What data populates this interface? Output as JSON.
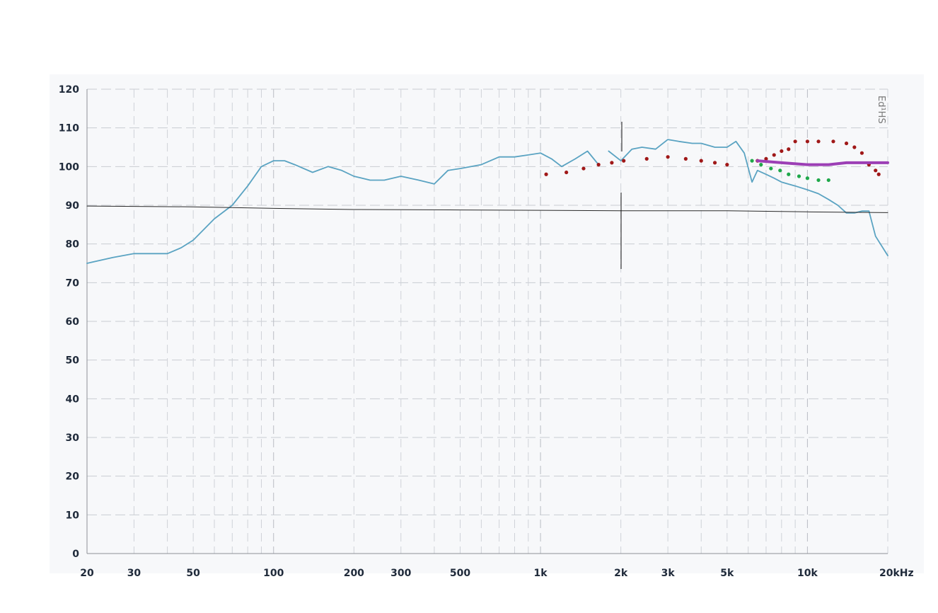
{
  "chart_data": {
    "type": "line",
    "xscale": "log",
    "xlim": [
      20,
      20000
    ],
    "ylim": [
      0,
      120
    ],
    "grid": true,
    "y_ticks": [
      "0",
      "10",
      "20",
      "30",
      "40",
      "50",
      "60",
      "70",
      "80",
      "90",
      "100",
      "110",
      "120"
    ],
    "x_ticks": [
      {
        "value": 20,
        "label": "20"
      },
      {
        "value": 30,
        "label": "30"
      },
      {
        "value": 50,
        "label": "50"
      },
      {
        "value": 100,
        "label": "100"
      },
      {
        "value": 200,
        "label": "200"
      },
      {
        "value": 300,
        "label": "300"
      },
      {
        "value": 500,
        "label": "500"
      },
      {
        "value": 1000,
        "label": "1k"
      },
      {
        "value": 2000,
        "label": "2k"
      },
      {
        "value": 3000,
        "label": "3k"
      },
      {
        "value": 5000,
        "label": "5k"
      },
      {
        "value": 10000,
        "label": "10k"
      },
      {
        "value": 20000,
        "label": "20kHz"
      }
    ],
    "side_label": "Ed¹HS",
    "series": [
      {
        "style": "line",
        "color": "#5aa3c2",
        "x": [
          20,
          25,
          30,
          35,
          40,
          45,
          50,
          60,
          70,
          80,
          90,
          100,
          110,
          120,
          140,
          160,
          180,
          200,
          230,
          260,
          300,
          350,
          400,
          450,
          500,
          600,
          700,
          800,
          900,
          1000,
          1100,
          1200,
          1350,
          1500,
          1650
        ],
        "y": [
          75,
          76.5,
          77.5,
          77.5,
          77.5,
          79,
          81,
          86.5,
          90,
          95,
          100,
          101.5,
          101.5,
          100.5,
          98.5,
          100,
          99,
          97.5,
          96.5,
          96.5,
          97.5,
          96.5,
          95.5,
          99,
          99.5,
          100.5,
          102.5,
          102.5,
          103,
          103.5,
          102,
          100,
          102,
          104,
          100.5
        ]
      },
      {
        "style": "line",
        "color": "#5aa3c2",
        "x": [
          1800,
          2000,
          2200,
          2400,
          2700,
          3000,
          3300,
          3700,
          4000,
          4500,
          5000,
          5400,
          5800,
          6200,
          6500,
          7000,
          7500,
          8000,
          9000,
          10000,
          11000,
          12000,
          13000,
          14000,
          15000,
          16000,
          17000,
          18000,
          20000
        ],
        "y": [
          104,
          101.5,
          104.5,
          105,
          104.5,
          107,
          106.5,
          106,
          106,
          105,
          105,
          106.5,
          103.5,
          96,
          99,
          98,
          97,
          96,
          95,
          94,
          93,
          91.5,
          90,
          88,
          88,
          88.5,
          88.5,
          82,
          77
        ]
      },
      {
        "style": "line",
        "color": "#2a2a2a",
        "x": [
          20,
          50,
          100,
          200,
          500,
          1000,
          2000,
          5000,
          10000,
          20000
        ],
        "y": [
          89.8,
          89.6,
          89.2,
          88.9,
          88.8,
          88.7,
          88.6,
          88.6,
          88.3,
          88.1
        ]
      },
      {
        "style": "dots",
        "color": "#a01818",
        "x": [
          1050,
          1250,
          1450,
          1650,
          1850,
          2050,
          2500,
          3000,
          3500,
          4000,
          4500,
          5000,
          6500,
          7000,
          7500,
          8000,
          8500,
          9000,
          10000,
          11000,
          12500,
          14000,
          15000,
          16000,
          17000,
          18000,
          18500
        ],
        "y": [
          98,
          98.5,
          99.5,
          100.5,
          101,
          101.5,
          102,
          102.5,
          102,
          101.5,
          101,
          100.5,
          101.5,
          102,
          103,
          104,
          104.5,
          106.5,
          106.5,
          106.5,
          106.5,
          106,
          105,
          103.5,
          100.5,
          99,
          98
        ]
      },
      {
        "style": "dots",
        "color": "#1fa84a",
        "x": [
          6200,
          6700,
          7300,
          7900,
          8500,
          9300,
          10000,
          11000,
          12000
        ],
        "y": [
          101.5,
          100.5,
          99.5,
          99,
          98,
          97.5,
          97,
          96.5,
          96.5
        ]
      },
      {
        "style": "line",
        "color": "#9c3fb5",
        "x": [
          6500,
          8000,
          10000,
          12000,
          14000,
          16000,
          18000,
          20000
        ],
        "y": [
          101.5,
          101,
          100.5,
          100.5,
          101,
          101,
          101,
          101
        ]
      }
    ]
  }
}
